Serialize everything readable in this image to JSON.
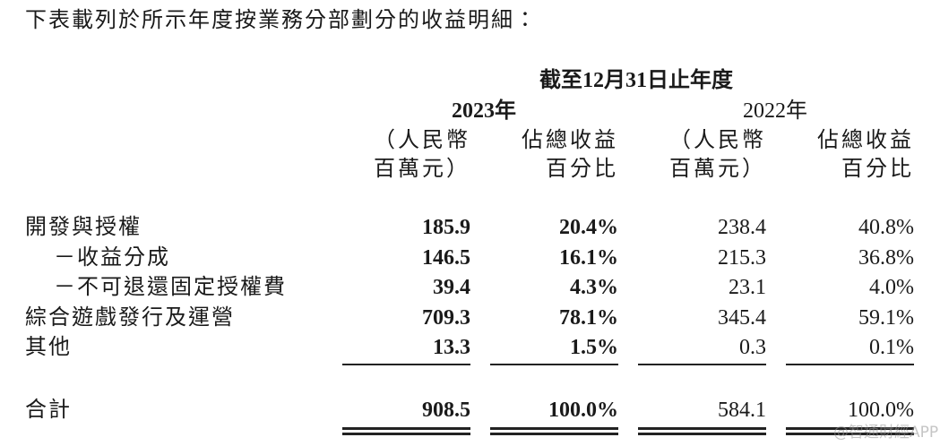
{
  "intro": "下表載列於所示年度按業務分部劃分的收益明細：",
  "table": {
    "period_header": "截至12月31日止年度",
    "years": [
      "2023年",
      "2022年"
    ],
    "column_headers": [
      [
        "（人民幣",
        "百萬元）"
      ],
      [
        "佔總收益",
        "百分比"
      ],
      [
        "（人民幣",
        "百萬元）"
      ],
      [
        "佔總收益",
        "百分比"
      ]
    ],
    "rows": [
      {
        "label": "開發與授權",
        "cells": [
          "185.9",
          "20.4%",
          "238.4",
          "40.8%"
        ]
      },
      {
        "label": "－收益分成",
        "cells": [
          "146.5",
          "16.1%",
          "215.3",
          "36.8%"
        ]
      },
      {
        "label": "－不可退還固定授權費",
        "cells": [
          "39.4",
          "4.3%",
          "23.1",
          "4.0%"
        ]
      },
      {
        "label": "綜合遊戲發行及運營",
        "cells": [
          "709.3",
          "78.1%",
          "345.4",
          "59.1%"
        ]
      },
      {
        "label": "其他",
        "cells": [
          "13.3",
          "1.5%",
          "0.3",
          "0.1%"
        ]
      }
    ],
    "total": {
      "label": "合計",
      "cells": [
        "908.5",
        "100.0%",
        "584.1",
        "100.0%"
      ]
    }
  },
  "watermark": "@智通財經APP"
}
